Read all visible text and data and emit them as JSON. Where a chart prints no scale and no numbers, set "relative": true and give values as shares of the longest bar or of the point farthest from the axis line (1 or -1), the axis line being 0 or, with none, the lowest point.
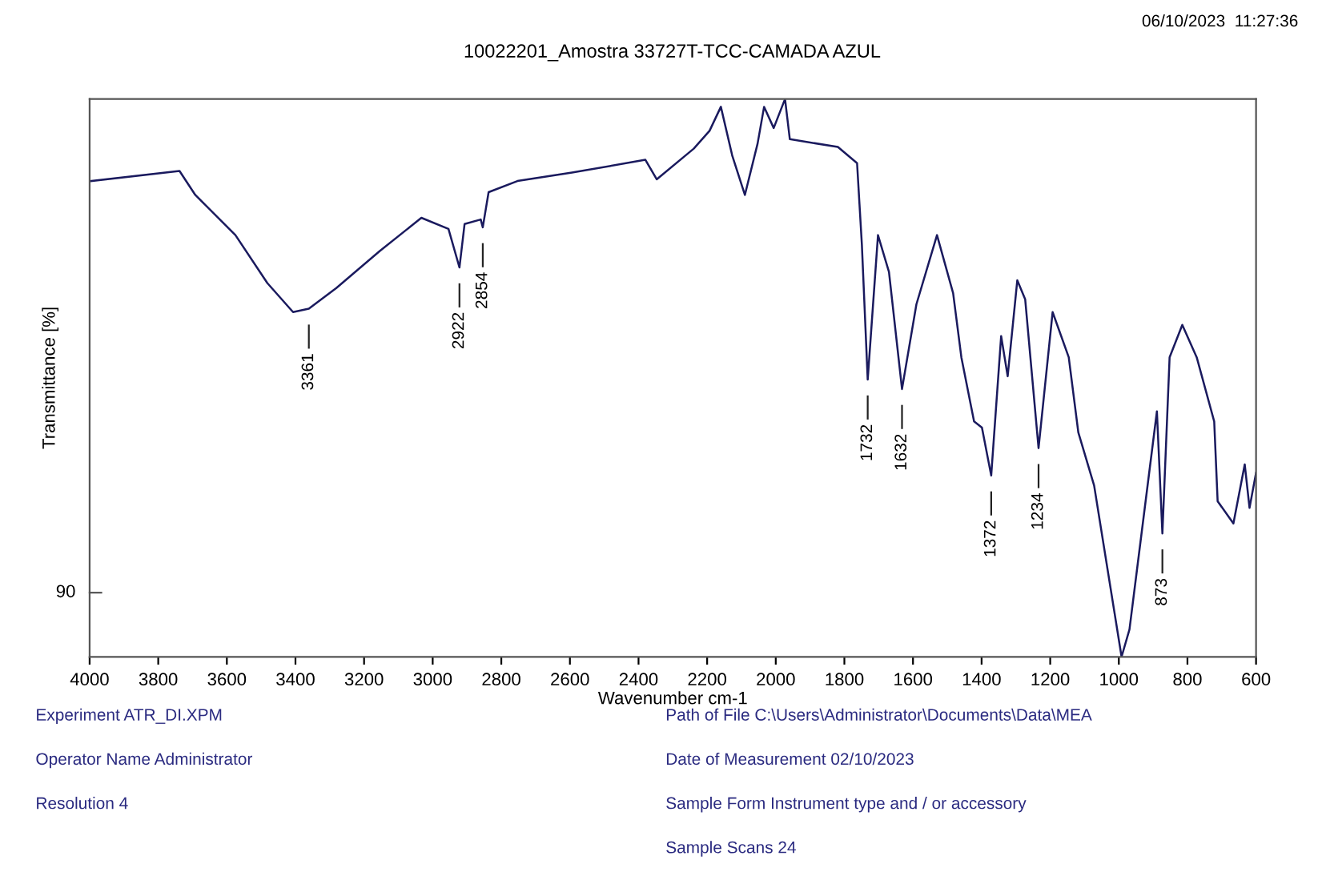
{
  "chart_data": {
    "type": "line",
    "relative": true,
    "title": "10022201_Amostra 33727T-TCC-CAMADA AZUL",
    "xlabel": "Wavenumber cm-1",
    "ylabel": "Transmittance [%]",
    "xlim": [
      4000,
      600
    ],
    "xticks": [
      4000,
      3800,
      3600,
      3400,
      3200,
      3000,
      2800,
      2600,
      2400,
      2200,
      2000,
      1800,
      1600,
      1400,
      1200,
      1000,
      800,
      600
    ],
    "grid": false,
    "legend": false,
    "marker": "none",
    "line_style": "solid",
    "series": [
      {
        "color": "#1a1a5e",
        "x": [
          3995,
          3738,
          3692,
          3575,
          3482,
          3407,
          3361,
          3281,
          3155,
          3033,
          2954,
          2922,
          2907,
          2860,
          2854,
          2837,
          2753,
          2594,
          2380,
          2347,
          2239,
          2193,
          2160,
          2127,
          2090,
          2053,
          2034,
          2006,
          1973,
          1959,
          1819,
          1763,
          1749,
          1732,
          1702,
          1670,
          1632,
          1590,
          1530,
          1483,
          1459,
          1422,
          1399,
          1372,
          1343,
          1324,
          1296,
          1273,
          1234,
          1193,
          1146,
          1118,
          1072,
          992,
          969,
          889,
          873,
          852,
          815,
          773,
          722,
          712,
          666,
          633,
          619,
          600
        ],
        "values": [
          0.853,
          0.871,
          0.828,
          0.756,
          0.67,
          0.618,
          0.624,
          0.661,
          0.727,
          0.787,
          0.767,
          0.698,
          0.776,
          0.784,
          0.77,
          0.833,
          0.853,
          0.868,
          0.891,
          0.856,
          0.911,
          0.943,
          0.986,
          0.899,
          0.828,
          0.92,
          0.986,
          0.948,
          1.0,
          0.928,
          0.914,
          0.885,
          0.739,
          0.497,
          0.756,
          0.69,
          0.48,
          0.632,
          0.756,
          0.652,
          0.537,
          0.422,
          0.411,
          0.325,
          0.575,
          0.503,
          0.675,
          0.641,
          0.374,
          0.618,
          0.537,
          0.402,
          0.307,
          0.0,
          0.049,
          0.44,
          0.221,
          0.537,
          0.595,
          0.537,
          0.422,
          0.279,
          0.239,
          0.345,
          0.267,
          0.33
        ]
      }
    ],
    "annotations": [
      "06/10/2023  11:27:36",
      "90",
      "Experiment ATR_DI.XPM",
      "Operator Name Administrator",
      "Resolution 4",
      "Path of File C:\\Users\\Administrator\\Documents\\Data\\MEA",
      "Date of Measurement 02/10/2023",
      "Sample Form Instrument type and / or accessory",
      "Sample Scans 24",
      {
        "text": "3361",
        "x": 3361,
        "y": 0.624
      },
      {
        "text": "2922",
        "x": 2922,
        "y": 0.698
      },
      {
        "text": "2854",
        "x": 2854,
        "y": 0.77
      },
      {
        "text": "1732",
        "x": 1732,
        "y": 0.497
      },
      {
        "text": "1632",
        "x": 1632,
        "y": 0.48
      },
      {
        "text": "1372",
        "x": 1372,
        "y": 0.325
      },
      {
        "text": "1234",
        "x": 1234,
        "y": 0.374
      },
      {
        "text": "873",
        "x": 873,
        "y": 0.221
      }
    ]
  }
}
